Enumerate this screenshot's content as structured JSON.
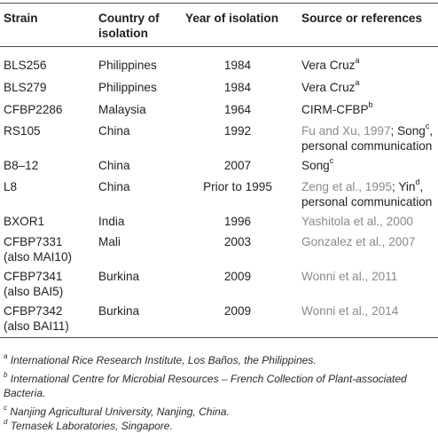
{
  "headers": {
    "strain": "Strain",
    "country_1": "Country of",
    "country_2": "isolation",
    "year": "Year of isolation",
    "source": "Source or references"
  },
  "rows": [
    {
      "strain": [
        "BLS256"
      ],
      "country": "Philippines",
      "year": "1984",
      "source": [
        [
          {
            "t": "Vera Cruz",
            "c": "dark"
          },
          {
            "t": "a",
            "c": "sup"
          }
        ]
      ]
    },
    {
      "strain": [
        "BLS279"
      ],
      "country": "Philippines",
      "year": "1984",
      "source": [
        [
          {
            "t": "Vera Cruz",
            "c": "dark"
          },
          {
            "t": "a",
            "c": "sup"
          }
        ]
      ]
    },
    {
      "strain": [
        "CFBP2286"
      ],
      "country": "Malaysia",
      "year": "1964",
      "source": [
        [
          {
            "t": "CIRM-CFBP",
            "c": "dark"
          },
          {
            "t": "b",
            "c": "sup"
          }
        ]
      ]
    },
    {
      "strain": [
        "RS105"
      ],
      "country": "China",
      "year": "1992",
      "source": [
        [
          {
            "t": "Fu and Xu, 1997",
            "c": "grey"
          },
          {
            "t": "; Song",
            "c": "dark"
          },
          {
            "t": "c",
            "c": "sup"
          },
          {
            "t": ",",
            "c": "dark"
          }
        ],
        [
          {
            "t": "personal communication",
            "c": "dark"
          }
        ]
      ]
    },
    {
      "strain": [
        "B8–12"
      ],
      "country": "China",
      "year": "2007",
      "source": [
        [
          {
            "t": "Song",
            "c": "dark"
          },
          {
            "t": "c",
            "c": "sup"
          }
        ]
      ]
    },
    {
      "strain": [
        "L8"
      ],
      "country": "China",
      "year": "Prior to 1995",
      "source": [
        [
          {
            "t": "Zeng et al., 1995",
            "c": "grey"
          },
          {
            "t": "; Yin",
            "c": "dark"
          },
          {
            "t": "d",
            "c": "sup"
          },
          {
            "t": ",",
            "c": "dark"
          }
        ],
        [
          {
            "t": "personal communication",
            "c": "dark"
          }
        ]
      ]
    },
    {
      "strain": [
        "BXOR1"
      ],
      "country": "India",
      "year": "1996",
      "source": [
        [
          {
            "t": "Yashitola et al., 2000",
            "c": "grey"
          }
        ]
      ]
    },
    {
      "strain": [
        "CFBP7331",
        "(also MAI10)"
      ],
      "country": "Mali",
      "year": "2003",
      "source": [
        [
          {
            "t": "Gonzalez et al., 2007",
            "c": "grey"
          }
        ]
      ]
    },
    {
      "strain": [
        "CFBP7341",
        "(also BAI5)"
      ],
      "country": "Burkina",
      "year": "2009",
      "source": [
        [
          {
            "t": "Wonni et al., 2011",
            "c": "grey"
          }
        ]
      ]
    },
    {
      "strain": [
        "CFBP7342",
        "(also BAI11)"
      ],
      "country": "Burkina",
      "year": "2009",
      "source": [
        [
          {
            "t": "Wonni et al., 2014",
            "c": "grey"
          }
        ]
      ]
    }
  ],
  "footnotes": [
    {
      "mark": "a",
      "lines": [
        "International Rice Research Institute, Los Baños, the Philippines."
      ]
    },
    {
      "mark": "b",
      "lines": [
        "International Centre for Microbial Resources – French Collection of Plant-associated",
        "Bacteria."
      ]
    },
    {
      "mark": "c",
      "lines": [
        "Nanjing Agricultural University, Nanjing, China."
      ]
    },
    {
      "mark": "d",
      "lines": [
        "Temasek Laboratories, Singapore."
      ]
    }
  ]
}
